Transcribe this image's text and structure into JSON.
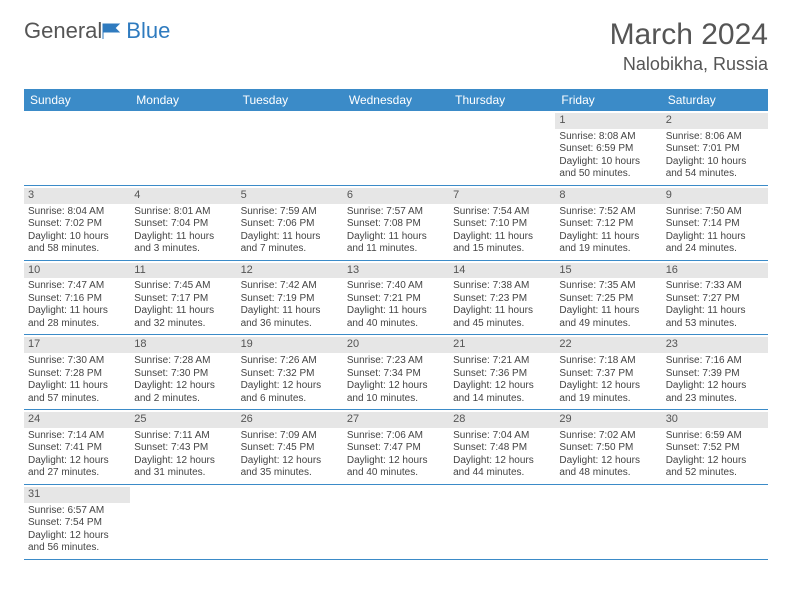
{
  "logo": {
    "text1": "General",
    "text2": "Blue"
  },
  "title": "March 2024",
  "location": "Nalobikha, Russia",
  "colors": {
    "header_bg": "#3b8bc8",
    "header_fg": "#ffffff",
    "daynum_bg": "#e6e6e6",
    "row_border": "#3b8bc8",
    "text": "#444444"
  },
  "typography": {
    "title_fontsize": 30,
    "location_fontsize": 18,
    "dayheader_fontsize": 12,
    "cell_fontsize": 10
  },
  "day_headers": [
    "Sunday",
    "Monday",
    "Tuesday",
    "Wednesday",
    "Thursday",
    "Friday",
    "Saturday"
  ],
  "weeks": [
    [
      null,
      null,
      null,
      null,
      null,
      {
        "n": "1",
        "sunrise": "Sunrise: 8:08 AM",
        "sunset": "Sunset: 6:59 PM",
        "daylight": "Daylight: 10 hours and 50 minutes."
      },
      {
        "n": "2",
        "sunrise": "Sunrise: 8:06 AM",
        "sunset": "Sunset: 7:01 PM",
        "daylight": "Daylight: 10 hours and 54 minutes."
      }
    ],
    [
      {
        "n": "3",
        "sunrise": "Sunrise: 8:04 AM",
        "sunset": "Sunset: 7:02 PM",
        "daylight": "Daylight: 10 hours and 58 minutes."
      },
      {
        "n": "4",
        "sunrise": "Sunrise: 8:01 AM",
        "sunset": "Sunset: 7:04 PM",
        "daylight": "Daylight: 11 hours and 3 minutes."
      },
      {
        "n": "5",
        "sunrise": "Sunrise: 7:59 AM",
        "sunset": "Sunset: 7:06 PM",
        "daylight": "Daylight: 11 hours and 7 minutes."
      },
      {
        "n": "6",
        "sunrise": "Sunrise: 7:57 AM",
        "sunset": "Sunset: 7:08 PM",
        "daylight": "Daylight: 11 hours and 11 minutes."
      },
      {
        "n": "7",
        "sunrise": "Sunrise: 7:54 AM",
        "sunset": "Sunset: 7:10 PM",
        "daylight": "Daylight: 11 hours and 15 minutes."
      },
      {
        "n": "8",
        "sunrise": "Sunrise: 7:52 AM",
        "sunset": "Sunset: 7:12 PM",
        "daylight": "Daylight: 11 hours and 19 minutes."
      },
      {
        "n": "9",
        "sunrise": "Sunrise: 7:50 AM",
        "sunset": "Sunset: 7:14 PM",
        "daylight": "Daylight: 11 hours and 24 minutes."
      }
    ],
    [
      {
        "n": "10",
        "sunrise": "Sunrise: 7:47 AM",
        "sunset": "Sunset: 7:16 PM",
        "daylight": "Daylight: 11 hours and 28 minutes."
      },
      {
        "n": "11",
        "sunrise": "Sunrise: 7:45 AM",
        "sunset": "Sunset: 7:17 PM",
        "daylight": "Daylight: 11 hours and 32 minutes."
      },
      {
        "n": "12",
        "sunrise": "Sunrise: 7:42 AM",
        "sunset": "Sunset: 7:19 PM",
        "daylight": "Daylight: 11 hours and 36 minutes."
      },
      {
        "n": "13",
        "sunrise": "Sunrise: 7:40 AM",
        "sunset": "Sunset: 7:21 PM",
        "daylight": "Daylight: 11 hours and 40 minutes."
      },
      {
        "n": "14",
        "sunrise": "Sunrise: 7:38 AM",
        "sunset": "Sunset: 7:23 PM",
        "daylight": "Daylight: 11 hours and 45 minutes."
      },
      {
        "n": "15",
        "sunrise": "Sunrise: 7:35 AM",
        "sunset": "Sunset: 7:25 PM",
        "daylight": "Daylight: 11 hours and 49 minutes."
      },
      {
        "n": "16",
        "sunrise": "Sunrise: 7:33 AM",
        "sunset": "Sunset: 7:27 PM",
        "daylight": "Daylight: 11 hours and 53 minutes."
      }
    ],
    [
      {
        "n": "17",
        "sunrise": "Sunrise: 7:30 AM",
        "sunset": "Sunset: 7:28 PM",
        "daylight": "Daylight: 11 hours and 57 minutes."
      },
      {
        "n": "18",
        "sunrise": "Sunrise: 7:28 AM",
        "sunset": "Sunset: 7:30 PM",
        "daylight": "Daylight: 12 hours and 2 minutes."
      },
      {
        "n": "19",
        "sunrise": "Sunrise: 7:26 AM",
        "sunset": "Sunset: 7:32 PM",
        "daylight": "Daylight: 12 hours and 6 minutes."
      },
      {
        "n": "20",
        "sunrise": "Sunrise: 7:23 AM",
        "sunset": "Sunset: 7:34 PM",
        "daylight": "Daylight: 12 hours and 10 minutes."
      },
      {
        "n": "21",
        "sunrise": "Sunrise: 7:21 AM",
        "sunset": "Sunset: 7:36 PM",
        "daylight": "Daylight: 12 hours and 14 minutes."
      },
      {
        "n": "22",
        "sunrise": "Sunrise: 7:18 AM",
        "sunset": "Sunset: 7:37 PM",
        "daylight": "Daylight: 12 hours and 19 minutes."
      },
      {
        "n": "23",
        "sunrise": "Sunrise: 7:16 AM",
        "sunset": "Sunset: 7:39 PM",
        "daylight": "Daylight: 12 hours and 23 minutes."
      }
    ],
    [
      {
        "n": "24",
        "sunrise": "Sunrise: 7:14 AM",
        "sunset": "Sunset: 7:41 PM",
        "daylight": "Daylight: 12 hours and 27 minutes."
      },
      {
        "n": "25",
        "sunrise": "Sunrise: 7:11 AM",
        "sunset": "Sunset: 7:43 PM",
        "daylight": "Daylight: 12 hours and 31 minutes."
      },
      {
        "n": "26",
        "sunrise": "Sunrise: 7:09 AM",
        "sunset": "Sunset: 7:45 PM",
        "daylight": "Daylight: 12 hours and 35 minutes."
      },
      {
        "n": "27",
        "sunrise": "Sunrise: 7:06 AM",
        "sunset": "Sunset: 7:47 PM",
        "daylight": "Daylight: 12 hours and 40 minutes."
      },
      {
        "n": "28",
        "sunrise": "Sunrise: 7:04 AM",
        "sunset": "Sunset: 7:48 PM",
        "daylight": "Daylight: 12 hours and 44 minutes."
      },
      {
        "n": "29",
        "sunrise": "Sunrise: 7:02 AM",
        "sunset": "Sunset: 7:50 PM",
        "daylight": "Daylight: 12 hours and 48 minutes."
      },
      {
        "n": "30",
        "sunrise": "Sunrise: 6:59 AM",
        "sunset": "Sunset: 7:52 PM",
        "daylight": "Daylight: 12 hours and 52 minutes."
      }
    ],
    [
      {
        "n": "31",
        "sunrise": "Sunrise: 6:57 AM",
        "sunset": "Sunset: 7:54 PM",
        "daylight": "Daylight: 12 hours and 56 minutes."
      },
      null,
      null,
      null,
      null,
      null,
      null
    ]
  ]
}
